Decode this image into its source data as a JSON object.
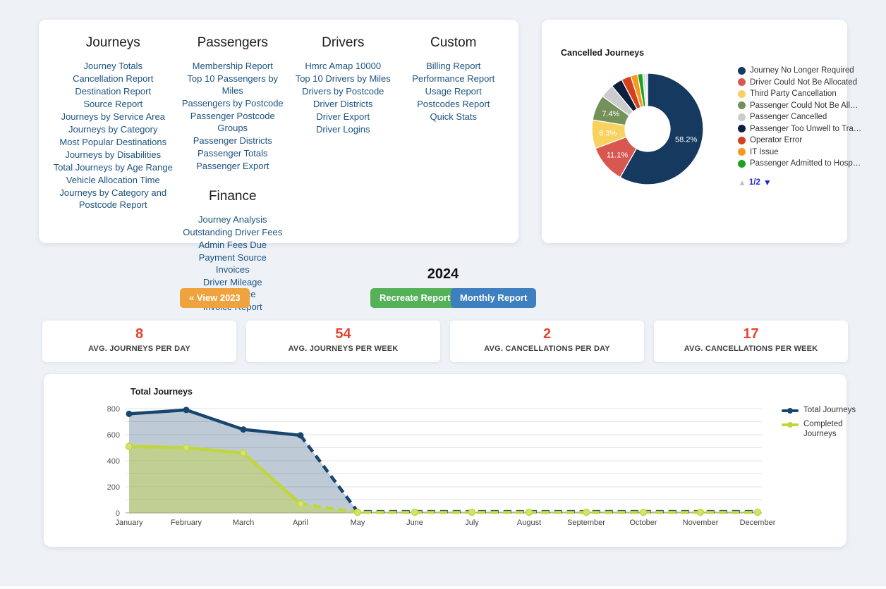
{
  "reports_card": {
    "columns": [
      {
        "cls": "report-col-1",
        "sections": [
          {
            "title": "Journeys",
            "links": [
              "Journey Totals",
              "Cancellation Report",
              "Destination Report",
              "Source Report",
              "Journeys by Service Area",
              "Journeys by Category",
              "Most Popular Destinations",
              "Journeys by Disabilities",
              "Total Journeys by Age Range",
              "Vehicle Allocation Time",
              "Journeys by Category and Postcode Report"
            ]
          }
        ]
      },
      {
        "cls": "",
        "sections": [
          {
            "title": "Passengers",
            "links": [
              "Membership Report",
              "Top 10 Passengers by Miles",
              "Passengers by Postcode",
              "Passenger Postcode Groups",
              "Passenger Districts",
              "Passenger Totals",
              "Passenger Export"
            ]
          },
          {
            "title": "Finance",
            "links": [
              "Journey Analysis",
              "Outstanding Driver Fees",
              "Admin Fees Due",
              "Payment Source Invoices",
              "Driver Mileage Remittance",
              "Invoice Report"
            ]
          }
        ]
      },
      {
        "cls": "",
        "sections": [
          {
            "title": "Drivers",
            "links": [
              "Hmrc Amap 10000",
              "Top 10 Drivers by Miles",
              "Drivers by Postcode",
              "Driver Districts",
              "Driver Export",
              "Driver Logins"
            ]
          }
        ]
      },
      {
        "cls": "",
        "sections": [
          {
            "title": "Custom",
            "links": [
              "Billing Report",
              "Performance Report",
              "Usage Report",
              "Postcodes Report",
              "Quick Stats"
            ]
          }
        ]
      }
    ]
  },
  "cancelled_card": {
    "pagination": {
      "up_icon": "▲",
      "page_label": "1/2",
      "down_icon": "▼"
    }
  },
  "year_controls": {
    "year": "2024",
    "view_prev_label": "« View 2023",
    "recreate_label": "Recreate Report",
    "monthly_label": "Monthly Report"
  },
  "stats": [
    {
      "value": "8",
      "label": "AVG. JOURNEYS PER DAY"
    },
    {
      "value": "54",
      "label": "AVG. JOURNEYS PER WEEK"
    },
    {
      "value": "2",
      "label": "AVG. CANCELLATIONS PER DAY"
    },
    {
      "value": "17",
      "label": "AVG. CANCELLATIONS PER WEEK"
    }
  ],
  "chart_data": [
    {
      "type": "pie",
      "title": "Cancelled Journeys",
      "donut": true,
      "legend_position": "right",
      "legend_page": "1/2",
      "label_color": "#ffffff",
      "slices": [
        {
          "label": "Journey No Longer Required",
          "value": 58.2,
          "color": "#16395f",
          "pct_label": "58.2%"
        },
        {
          "label": "Driver Could Not Be Allocated",
          "value": 11.1,
          "color": "#d85750",
          "pct_label": "11.1%"
        },
        {
          "label": "Third Party Cancellation",
          "value": 8.3,
          "color": "#f8d25f",
          "pct_label": "8.3%"
        },
        {
          "label": "Passenger Could Not Be All…",
          "value": 7.4,
          "color": "#75915a",
          "pct_label": "7.4%"
        },
        {
          "label": "Passenger Cancelled",
          "value": 4.0,
          "color": "#cccccc",
          "pct_label": ""
        },
        {
          "label": "Passenger Too Unwell to Tra…",
          "value": 3.3,
          "color": "#0e1f3d",
          "pct_label": ""
        },
        {
          "label": "Operator Error",
          "value": 2.8,
          "color": "#d4411b",
          "pct_label": ""
        },
        {
          "label": "IT Issue",
          "value": 2.0,
          "color": "#f6981e",
          "pct_label": ""
        },
        {
          "label": "Passenger Admitted to Hosp…",
          "value": 1.5,
          "color": "#1ca222",
          "pct_label": ""
        },
        {
          "label": "",
          "value": 0.9,
          "color": "#d9d9d9",
          "pct_label": ""
        },
        {
          "label": "",
          "value": 0.5,
          "color": "#bdd0e2",
          "pct_label": ""
        }
      ]
    },
    {
      "type": "area",
      "title": "Total Journeys",
      "categories": [
        "January",
        "February",
        "March",
        "April",
        "May",
        "June",
        "July",
        "August",
        "September",
        "October",
        "November",
        "December"
      ],
      "ylim": [
        0,
        800
      ],
      "yticks": [
        0,
        200,
        400,
        600,
        800
      ],
      "grid_step": 100,
      "dashed_from_index": 3,
      "legend_position": "right",
      "series": [
        {
          "name": "Total Journeys",
          "color": "#17466f",
          "fill": "rgba(23,70,111,0.28)",
          "values": [
            760,
            790,
            640,
            595,
            10,
            10,
            10,
            10,
            10,
            10,
            10,
            10
          ],
          "markers_until_index": 3
        },
        {
          "name": "Completed Journeys",
          "color": "#c1d63e",
          "fill": "rgba(193,214,62,0.45)",
          "marker_fill": "#d3e272",
          "values": [
            510,
            500,
            460,
            70,
            5,
            5,
            5,
            5,
            5,
            5,
            5,
            5
          ],
          "markers_until_index": 11
        }
      ]
    }
  ]
}
